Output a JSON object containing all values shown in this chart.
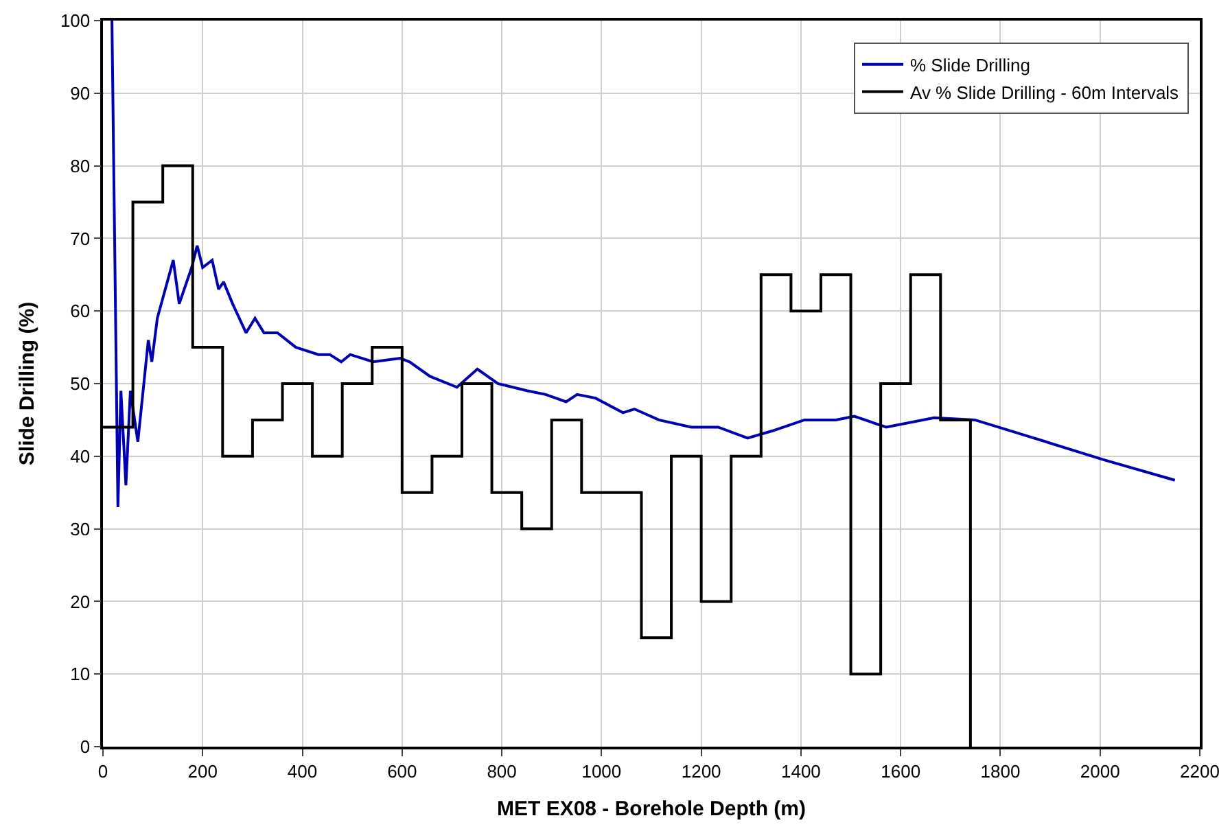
{
  "chart_data": {
    "type": "line",
    "xlabel": "MET EX08 - Borehole Depth (m)",
    "ylabel": "Slide Drilling (%)",
    "xlim": [
      0,
      2200
    ],
    "xticks": [
      0,
      200,
      400,
      600,
      800,
      1000,
      1200,
      1400,
      1600,
      1800,
      2000,
      2200
    ],
    "ylim": [
      0,
      100
    ],
    "yticks": [
      0,
      10,
      20,
      30,
      40,
      50,
      60,
      70,
      80,
      90,
      100
    ],
    "grid": true,
    "legend": "top right",
    "line_style": "solid",
    "series": [
      {
        "name": "% Slide Drilling",
        "color": "#0000b0",
        "x": [
          18,
          30,
          36,
          46,
          55,
          70,
          91,
          98,
          109,
          141,
          153,
          178,
          189,
          200,
          219,
          232,
          242,
          260,
          287,
          305,
          323,
          350,
          387,
          432,
          455,
          478,
          496,
          542,
          596,
          615,
          656,
          710,
          751,
          792,
          852,
          888,
          929,
          951,
          988,
          1043,
          1066,
          1115,
          1180,
          1234,
          1293,
          1343,
          1407,
          1470,
          1507,
          1571,
          1667,
          1749,
          1844,
          2008,
          2150
        ],
        "values": [
          100,
          33,
          49,
          36,
          49,
          42,
          56,
          53,
          59,
          67,
          61,
          66,
          69,
          66,
          67,
          63,
          64,
          61,
          57,
          59,
          57,
          57,
          55,
          54,
          54,
          53,
          54,
          53,
          53.5,
          53,
          51,
          49.5,
          52,
          50,
          49,
          48.5,
          47.5,
          48.5,
          48,
          46,
          46.5,
          45,
          44,
          44,
          42.5,
          43.5,
          45,
          45,
          45.5,
          44,
          45.3,
          45,
          43,
          39.5,
          36.7
        ]
      },
      {
        "name": "Av % Slide Drilling - 60m Intervals",
        "color": "#000000",
        "type": "step",
        "x": [
          0,
          60,
          120,
          180,
          240,
          300,
          360,
          420,
          480,
          540,
          600,
          660,
          720,
          780,
          840,
          900,
          960,
          1020,
          1080,
          1140,
          1200,
          1260,
          1320,
          1380,
          1440,
          1500,
          1560,
          1620,
          1680,
          1740
        ],
        "values": [
          44,
          75,
          80,
          55,
          40,
          45,
          50,
          40,
          50,
          55,
          35,
          40,
          50,
          35,
          30,
          45,
          35,
          35,
          15,
          40,
          20,
          40,
          65,
          60,
          65,
          10,
          50,
          65,
          45,
          0
        ]
      }
    ]
  }
}
